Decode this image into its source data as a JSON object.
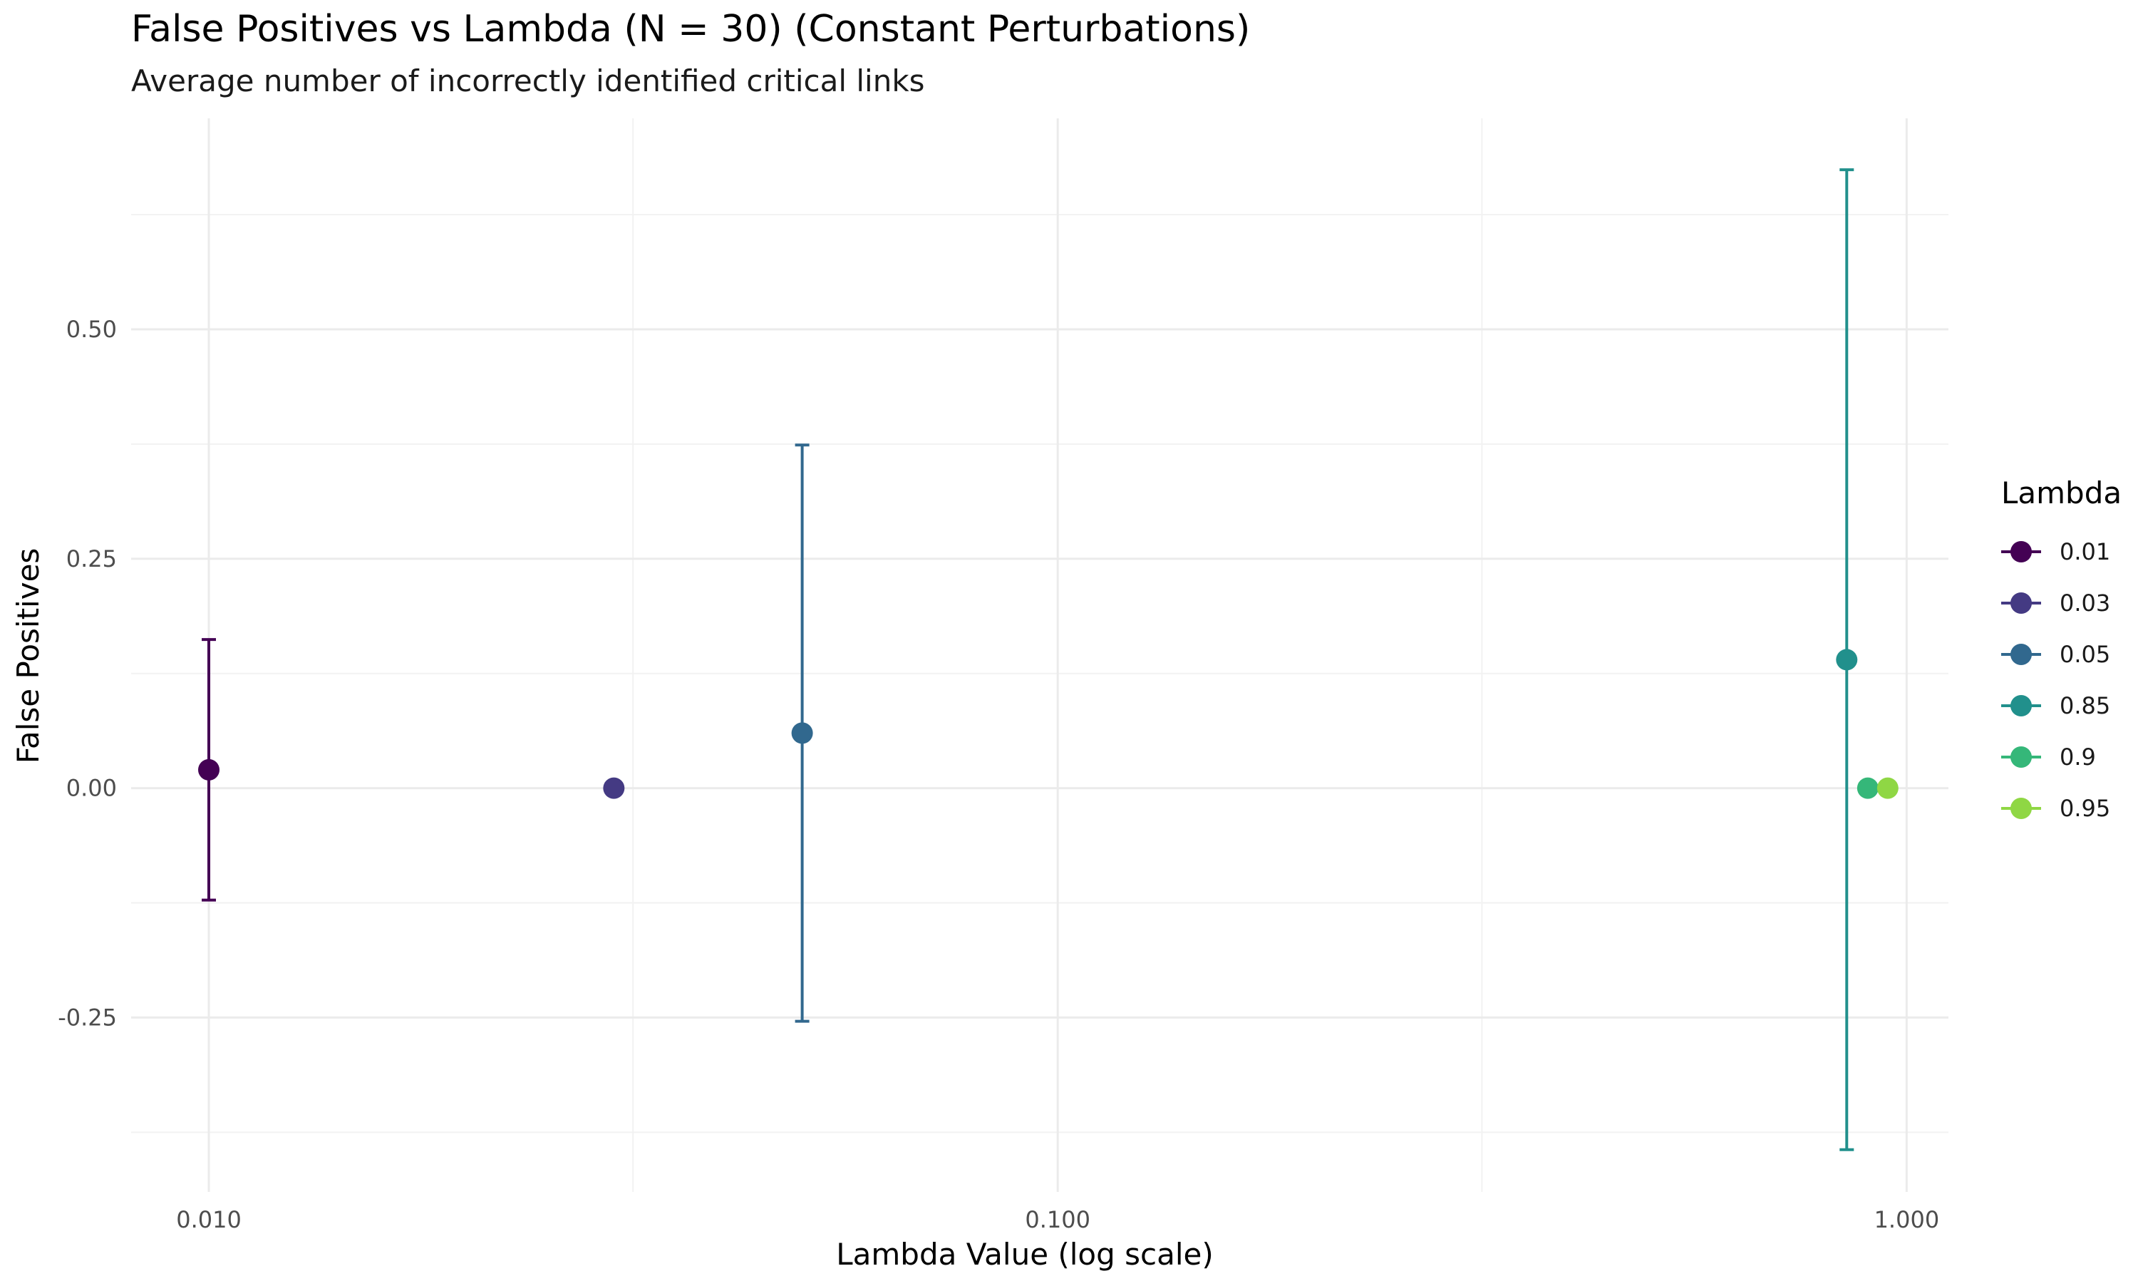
{
  "chart_data": {
    "type": "scatter",
    "title": "False Positives vs Lambda (N = 30) (Constant Perturbations)",
    "subtitle": "Average number of incorrectly identified critical links",
    "xlabel": "Lambda Value (log scale)",
    "ylabel": "False Positives",
    "x_scale": "log10",
    "xlim": [
      0.0081,
      1.12
    ],
    "ylim": [
      -0.44,
      0.73
    ],
    "x_ticks": [
      0.01,
      0.1,
      1.0
    ],
    "x_tick_labels": [
      "0.010",
      "0.100",
      "1.000"
    ],
    "x_minor_ticks": [
      0.0316,
      0.316
    ],
    "y_ticks": [
      -0.25,
      0,
      0.25,
      0.5
    ],
    "y_tick_labels": [
      "-0.25",
      "0.00",
      "0.25",
      "0.50"
    ],
    "y_minor_ticks": [
      -0.375,
      -0.125,
      0.125,
      0.375,
      0.625
    ],
    "grid": true,
    "legend": {
      "title": "Lambda",
      "position": "right"
    },
    "series": [
      {
        "name": "0.01",
        "x": 0.01,
        "y": 0.02,
        "ymin": -0.122,
        "ymax": 0.162,
        "color": "#440154"
      },
      {
        "name": "0.03",
        "x": 0.03,
        "y": 0.0,
        "ymin": null,
        "ymax": null,
        "color": "#443A83"
      },
      {
        "name": "0.05",
        "x": 0.05,
        "y": 0.06,
        "ymin": -0.254,
        "ymax": 0.374,
        "color": "#31688E"
      },
      {
        "name": "0.85",
        "x": 0.85,
        "y": 0.14,
        "ymin": -0.394,
        "ymax": 0.674,
        "color": "#21908C"
      },
      {
        "name": "0.9",
        "x": 0.9,
        "y": 0.0,
        "ymin": null,
        "ymax": null,
        "color": "#35B779"
      },
      {
        "name": "0.95",
        "x": 0.95,
        "y": 0.0,
        "ymin": null,
        "ymax": null,
        "color": "#8FD744"
      }
    ]
  }
}
